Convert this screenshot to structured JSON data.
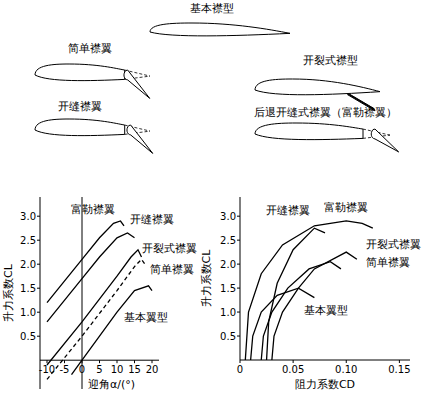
{
  "diagram": {
    "airfoils": [
      {
        "label": "基本襟型"
      },
      {
        "label": "简单襟翼"
      },
      {
        "label": "开裂式襟型"
      },
      {
        "label": "开缝襟翼"
      },
      {
        "label": "后退开缝式襟翼（富勒襟翼）"
      }
    ]
  },
  "chart_data": [
    {
      "type": "line",
      "x_label": "迎角α/(°)",
      "y_label": "升力系数CL",
      "xlim": [
        -12,
        22
      ],
      "ylim": [
        -0.6,
        3.4
      ],
      "xticks": [
        -10,
        -5,
        0,
        5,
        10,
        15,
        20
      ],
      "yticks": [
        0.5,
        {
          "value": 1,
          "label": "1.0"
        },
        1.5,
        {
          "value": 2,
          "label": "2.0"
        },
        2.5,
        {
          "value": 3,
          "label": "3.0"
        }
      ],
      "series": [
        {
          "name": "富勒襟翼",
          "color": "#000000",
          "line_style": "solid",
          "x": [
            -10,
            0,
            5,
            9,
            11,
            12
          ],
          "values": [
            1.2,
            2.1,
            2.55,
            2.85,
            2.9,
            2.8
          ]
        },
        {
          "name": "开缝襟翼",
          "color": "#000000",
          "line_style": "solid",
          "x": [
            -10,
            0,
            5,
            10,
            13,
            15
          ],
          "values": [
            0.8,
            1.7,
            2.15,
            2.55,
            2.65,
            2.55
          ]
        },
        {
          "name": "开裂式襟翼",
          "color": "#000000",
          "line_style": "solid",
          "x": [
            -10,
            0,
            10,
            14,
            16,
            17
          ],
          "values": [
            -0.1,
            0.8,
            1.75,
            2.15,
            2.3,
            2.15
          ]
        },
        {
          "name": "简单襟翼",
          "color": "#000000",
          "line_style": "dashed",
          "x": [
            -10,
            0,
            10,
            15,
            17,
            18
          ],
          "values": [
            -0.4,
            0.5,
            1.45,
            1.95,
            2.1,
            2.0
          ]
        },
        {
          "name": "基本翼型",
          "color": "#000000",
          "line_style": "solid",
          "x": [
            -3,
            0,
            10,
            15,
            19,
            20
          ],
          "values": [
            -0.3,
            0,
            1.0,
            1.45,
            1.55,
            1.45
          ]
        }
      ]
    },
    {
      "type": "line",
      "x_label": "阻力系数CD",
      "y_label": "升力系数CL",
      "xlim": [
        0,
        0.16
      ],
      "ylim": [
        0,
        3.4
      ],
      "xticks": [
        0,
        0.05,
        {
          "value": 0.1,
          "label": "0.10"
        },
        0.15
      ],
      "yticks": [
        0.5,
        {
          "value": 1,
          "label": "1.0"
        },
        1.5,
        {
          "value": 2,
          "label": "2.0"
        },
        2.5,
        {
          "value": 3,
          "label": "3.0"
        }
      ],
      "series": [
        {
          "name": "富勒襟翼",
          "color": "#000000",
          "line_style": "solid",
          "x": [
            0.005,
            0.008,
            0.02,
            0.04,
            0.07,
            0.1,
            0.115,
            0.125
          ],
          "values": [
            0,
            1.0,
            1.8,
            2.4,
            2.8,
            2.9,
            2.85,
            2.75
          ]
        },
        {
          "name": "开缝襟翼",
          "color": "#000000",
          "line_style": "solid",
          "x": [
            0.025,
            0.027,
            0.035,
            0.05,
            0.07,
            0.08
          ],
          "values": [
            0,
            0.8,
            1.6,
            2.3,
            2.75,
            2.65
          ]
        },
        {
          "name": "开裂式襟翼",
          "color": "#000000",
          "line_style": "solid",
          "x": [
            0.03,
            0.032,
            0.04,
            0.055,
            0.07,
            0.1,
            0.11
          ],
          "values": [
            0,
            0.5,
            1.0,
            1.5,
            1.9,
            2.25,
            2.1
          ]
        },
        {
          "name": "简单襟翼",
          "color": "#000000",
          "line_style": "solid",
          "x": [
            0.02,
            0.022,
            0.03,
            0.045,
            0.065,
            0.085,
            0.095
          ],
          "values": [
            0,
            0.5,
            1.0,
            1.5,
            1.9,
            2.05,
            1.9
          ]
        },
        {
          "name": "基本翼型",
          "color": "#000000",
          "line_style": "solid",
          "x": [
            0.01,
            0.012,
            0.02,
            0.035,
            0.055,
            0.07
          ],
          "values": [
            0,
            0.5,
            1.0,
            1.35,
            1.5,
            1.3
          ]
        }
      ]
    }
  ]
}
